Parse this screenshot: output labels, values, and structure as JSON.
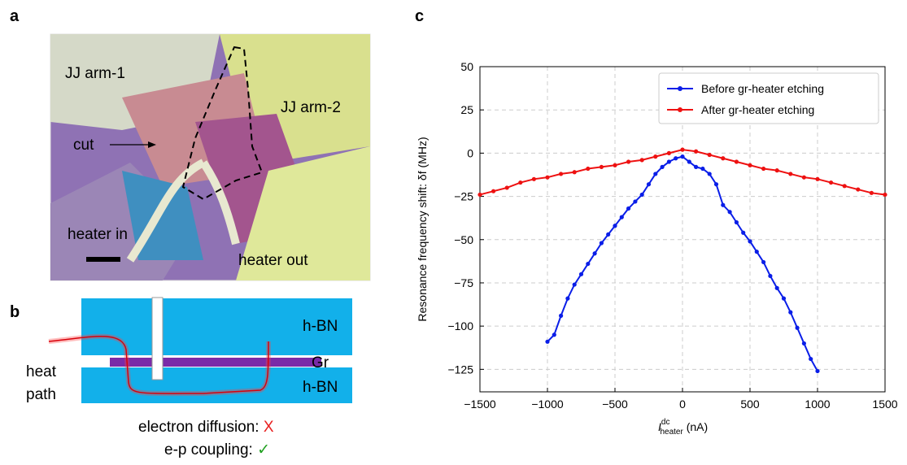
{
  "panels": {
    "a": "a",
    "b": "b",
    "c": "c"
  },
  "image_labels": {
    "arm1": "JJ arm-1",
    "arm2": "JJ arm-2",
    "cut": "cut",
    "heater_in": "heater in",
    "heater_out": "heater out"
  },
  "diagram": {
    "top_layer": "h-BN",
    "middle_layer": "Gr",
    "bottom_layer": "h-BN",
    "heat": "heat",
    "path": "path",
    "diffusion": "electron diffusion: ",
    "diffusion_mark": "X",
    "coupling": "e-p coupling: ",
    "coupling_mark": "✓"
  },
  "chart_data": {
    "type": "line",
    "y_label": "Resonance frequency shift: δf (MHz)",
    "x_label": {
      "symbol": "I",
      "superscript": "dc",
      "subscript": "heater",
      "unit": " (nA)"
    },
    "xlim": [
      -1500,
      1500
    ],
    "xticks": [
      {
        "value": -1500,
        "label": "−1500"
      },
      {
        "value": -1000,
        "label": "−1000"
      },
      {
        "value": -500,
        "label": "−500"
      },
      0,
      500,
      1000,
      1500
    ],
    "ylim": [
      -138,
      50
    ],
    "yticks": [
      {
        "value": -125,
        "label": "−125"
      },
      {
        "value": -100,
        "label": "−100"
      },
      {
        "value": -75,
        "label": "−75"
      },
      {
        "value": -50,
        "label": "−50"
      },
      {
        "value": -25,
        "label": "−25"
      },
      0,
      25,
      50
    ],
    "grid": true,
    "legend": "upper right",
    "series": [
      {
        "name": "Before gr-heater etching",
        "color": "#0a1ee8",
        "x": [
          -1000,
          -950,
          -900,
          -850,
          -800,
          -750,
          -700,
          -650,
          -600,
          -550,
          -500,
          -450,
          -400,
          -350,
          -300,
          -250,
          -200,
          -150,
          -100,
          -50,
          0,
          50,
          100,
          150,
          200,
          250,
          300,
          350,
          400,
          450,
          500,
          550,
          600,
          650,
          700,
          750,
          800,
          850,
          900,
          950,
          1000
        ],
        "values": [
          -109,
          -105,
          -94,
          -84,
          -76,
          -70,
          -64,
          -58,
          -52,
          -47,
          -42,
          -37,
          -32,
          -28,
          -24,
          -18,
          -12,
          -8,
          -5,
          -3,
          -2,
          -5,
          -8,
          -9,
          -12,
          -18,
          -30,
          -34,
          -40,
          -46,
          -51,
          -57,
          -63,
          -71,
          -78,
          -84,
          -92,
          -101,
          -110,
          -119,
          -126
        ]
      },
      {
        "name": "After gr-heater etching",
        "color": "#ee1111",
        "x": [
          -1500,
          -1400,
          -1300,
          -1200,
          -1100,
          -1000,
          -900,
          -800,
          -700,
          -600,
          -500,
          -400,
          -300,
          -200,
          -100,
          0,
          100,
          200,
          300,
          400,
          500,
          600,
          700,
          800,
          900,
          1000,
          1100,
          1200,
          1300,
          1400,
          1500
        ],
        "values": [
          -24,
          -22,
          -20,
          -17,
          -15,
          -14,
          -12,
          -11,
          -9,
          -8,
          -7,
          -5,
          -4,
          -2,
          0,
          2,
          1,
          -1,
          -3,
          -5,
          -7,
          -9,
          -10,
          -12,
          -14,
          -15,
          -17,
          -19,
          -21,
          -23,
          -24
        ]
      }
    ]
  }
}
